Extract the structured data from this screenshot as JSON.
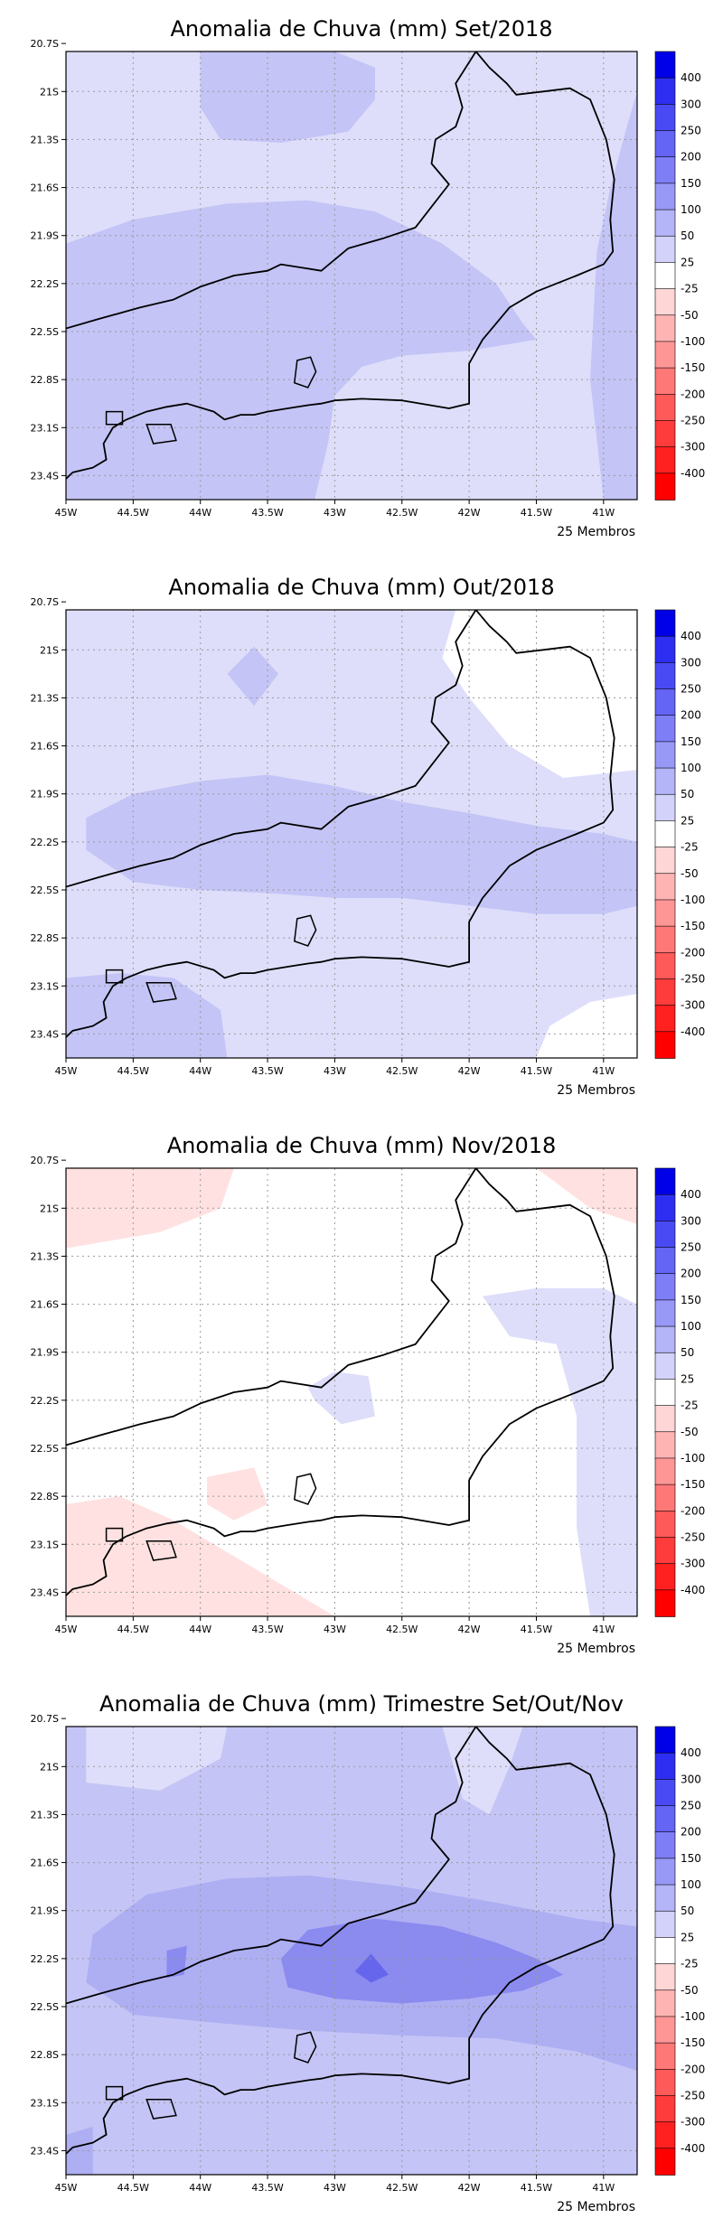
{
  "panels": [
    {
      "title": "Anomalia de Chuva (mm) Set/2018",
      "members_label": "25 Membros",
      "regions": [
        {
          "level": 25,
          "points": [
            [
              -45.0,
              -20.75
            ],
            [
              -40.75,
              -20.75
            ],
            [
              -40.75,
              -23.55
            ],
            [
              -45.0,
              -23.55
            ]
          ]
        },
        {
          "level": 50,
          "points": [
            [
              -45.0,
              -21.95
            ],
            [
              -44.5,
              -21.8
            ],
            [
              -43.8,
              -21.7
            ],
            [
              -43.2,
              -21.68
            ],
            [
              -42.7,
              -21.75
            ],
            [
              -42.2,
              -21.95
            ],
            [
              -41.8,
              -22.2
            ],
            [
              -41.6,
              -22.45
            ],
            [
              -41.5,
              -22.55
            ],
            [
              -42.0,
              -22.62
            ],
            [
              -42.5,
              -22.65
            ],
            [
              -42.8,
              -22.72
            ],
            [
              -43.0,
              -22.9
            ],
            [
              -43.05,
              -23.2
            ],
            [
              -43.15,
              -23.55
            ],
            [
              -45.0,
              -23.55
            ]
          ]
        },
        {
          "level": 50,
          "points": [
            [
              -44.0,
              -20.75
            ],
            [
              -43.0,
              -20.75
            ],
            [
              -42.7,
              -20.85
            ],
            [
              -42.7,
              -21.05
            ],
            [
              -42.9,
              -21.25
            ],
            [
              -43.4,
              -21.32
            ],
            [
              -43.85,
              -21.3
            ],
            [
              -44.0,
              -21.1
            ]
          ]
        },
        {
          "level": 50,
          "points": [
            [
              -40.82,
              -21.2
            ],
            [
              -40.75,
              -21.0
            ],
            [
              -40.75,
              -23.55
            ],
            [
              -41.0,
              -23.55
            ],
            [
              -41.1,
              -22.8
            ],
            [
              -41.05,
              -22.0
            ],
            [
              -40.95,
              -21.6
            ]
          ]
        }
      ]
    },
    {
      "title": "Anomalia de Chuva (mm) Out/2018",
      "members_label": "25 Membros",
      "regions": [
        {
          "level": 25,
          "points": [
            [
              -45.0,
              -20.75
            ],
            [
              -40.75,
              -20.75
            ],
            [
              -40.75,
              -23.55
            ],
            [
              -45.0,
              -23.55
            ]
          ]
        },
        {
          "level": 0,
          "points": [
            [
              -42.1,
              -20.75
            ],
            [
              -40.75,
              -20.75
            ],
            [
              -40.75,
              -21.75
            ],
            [
              -41.3,
              -21.8
            ],
            [
              -41.7,
              -21.6
            ],
            [
              -42.0,
              -21.3
            ],
            [
              -42.2,
              -21.05
            ]
          ]
        },
        {
          "level": 0,
          "points": [
            [
              -41.5,
              -23.55
            ],
            [
              -40.75,
              -23.55
            ],
            [
              -40.75,
              -23.15
            ],
            [
              -41.1,
              -23.2
            ],
            [
              -41.4,
              -23.35
            ]
          ]
        },
        {
          "level": 50,
          "points": [
            [
              -44.85,
              -22.25
            ],
            [
              -44.85,
              -22.05
            ],
            [
              -44.5,
              -21.9
            ],
            [
              -44.0,
              -21.82
            ],
            [
              -43.5,
              -21.78
            ],
            [
              -43.0,
              -21.85
            ],
            [
              -42.5,
              -21.95
            ],
            [
              -42.0,
              -22.02
            ],
            [
              -41.5,
              -22.1
            ],
            [
              -41.0,
              -22.15
            ],
            [
              -40.75,
              -22.2
            ],
            [
              -40.75,
              -22.6
            ],
            [
              -41.0,
              -22.65
            ],
            [
              -41.5,
              -22.65
            ],
            [
              -42.0,
              -22.6
            ],
            [
              -42.5,
              -22.55
            ],
            [
              -43.0,
              -22.55
            ],
            [
              -43.5,
              -22.52
            ],
            [
              -44.0,
              -22.5
            ],
            [
              -44.5,
              -22.45
            ]
          ]
        },
        {
          "level": 50,
          "points": [
            [
              -43.8,
              -21.15
            ],
            [
              -43.6,
              -20.98
            ],
            [
              -43.42,
              -21.15
            ],
            [
              -43.6,
              -21.35
            ]
          ]
        },
        {
          "level": 50,
          "points": [
            [
              -45.0,
              -23.05
            ],
            [
              -44.6,
              -23.02
            ],
            [
              -44.2,
              -23.05
            ],
            [
              -43.85,
              -23.25
            ],
            [
              -43.8,
              -23.55
            ],
            [
              -45.0,
              -23.55
            ]
          ]
        }
      ]
    },
    {
      "title": "Anomalia de Chuva (mm) Nov/2018",
      "members_label": "25 Membros",
      "regions": [
        {
          "level": 0,
          "points": [
            [
              -45.0,
              -20.75
            ],
            [
              -40.75,
              -20.75
            ],
            [
              -40.75,
              -23.55
            ],
            [
              -45.0,
              -23.55
            ]
          ]
        },
        {
          "level": -25,
          "points": [
            [
              -45.0,
              -20.75
            ],
            [
              -43.75,
              -20.75
            ],
            [
              -43.85,
              -21.0
            ],
            [
              -44.3,
              -21.15
            ],
            [
              -45.0,
              -21.25
            ]
          ]
        },
        {
          "level": -25,
          "points": [
            [
              -41.5,
              -20.75
            ],
            [
              -40.75,
              -20.75
            ],
            [
              -40.75,
              -21.1
            ],
            [
              -41.1,
              -21.0
            ]
          ]
        },
        {
          "level": -25,
          "points": [
            [
              -45.0,
              -22.85
            ],
            [
              -44.6,
              -22.8
            ],
            [
              -44.2,
              -22.95
            ],
            [
              -43.8,
              -23.15
            ],
            [
              -43.3,
              -23.4
            ],
            [
              -43.0,
              -23.55
            ],
            [
              -45.0,
              -23.55
            ]
          ]
        },
        {
          "level": -25,
          "points": [
            [
              -43.95,
              -22.68
            ],
            [
              -43.6,
              -22.62
            ],
            [
              -43.5,
              -22.85
            ],
            [
              -43.75,
              -22.95
            ],
            [
              -43.95,
              -22.85
            ]
          ]
        },
        {
          "level": 25,
          "points": [
            [
              -41.9,
              -21.55
            ],
            [
              -41.5,
              -21.5
            ],
            [
              -41.0,
              -21.5
            ],
            [
              -40.75,
              -21.6
            ],
            [
              -40.75,
              -23.55
            ],
            [
              -41.1,
              -23.55
            ],
            [
              -41.2,
              -23.0
            ],
            [
              -41.2,
              -22.3
            ],
            [
              -41.35,
              -21.85
            ],
            [
              -41.7,
              -21.8
            ]
          ]
        },
        {
          "level": 25,
          "points": [
            [
              -43.2,
              -22.12
            ],
            [
              -43.0,
              -22.02
            ],
            [
              -42.75,
              -22.05
            ],
            [
              -42.7,
              -22.3
            ],
            [
              -42.95,
              -22.35
            ],
            [
              -43.15,
              -22.2
            ]
          ]
        }
      ]
    },
    {
      "title": "Anomalia de Chuva (mm) Trimestre Set/Out/Nov",
      "members_label": "25 Membros",
      "regions": [
        {
          "level": 50,
          "points": [
            [
              -45.0,
              -20.75
            ],
            [
              -40.75,
              -20.75
            ],
            [
              -40.75,
              -23.55
            ],
            [
              -45.0,
              -23.55
            ]
          ]
        },
        {
          "level": 25,
          "points": [
            [
              -44.85,
              -20.75
            ],
            [
              -43.8,
              -20.75
            ],
            [
              -43.85,
              -20.95
            ],
            [
              -44.3,
              -21.15
            ],
            [
              -44.85,
              -21.1
            ]
          ]
        },
        {
          "level": 25,
          "points": [
            [
              -42.2,
              -20.75
            ],
            [
              -41.6,
              -20.75
            ],
            [
              -41.7,
              -21.0
            ],
            [
              -41.85,
              -21.3
            ],
            [
              -42.05,
              -21.2
            ]
          ]
        },
        {
          "level": 100,
          "points": [
            [
              -44.85,
              -22.35
            ],
            [
              -44.8,
              -22.05
            ],
            [
              -44.4,
              -21.8
            ],
            [
              -43.8,
              -21.7
            ],
            [
              -43.2,
              -21.68
            ],
            [
              -42.5,
              -21.75
            ],
            [
              -41.8,
              -21.85
            ],
            [
              -41.2,
              -21.95
            ],
            [
              -40.75,
              -22.0
            ],
            [
              -40.75,
              -22.9
            ],
            [
              -41.2,
              -22.78
            ],
            [
              -41.8,
              -22.7
            ],
            [
              -42.5,
              -22.68
            ],
            [
              -43.2,
              -22.65
            ],
            [
              -43.9,
              -22.6
            ],
            [
              -44.5,
              -22.55
            ]
          ]
        },
        {
          "level": 150,
          "points": [
            [
              -43.4,
              -22.2
            ],
            [
              -43.2,
              -22.02
            ],
            [
              -42.7,
              -21.95
            ],
            [
              -42.2,
              -22.0
            ],
            [
              -41.8,
              -22.1
            ],
            [
              -41.5,
              -22.2
            ],
            [
              -41.3,
              -22.3
            ],
            [
              -41.6,
              -22.4
            ],
            [
              -42.0,
              -22.45
            ],
            [
              -42.5,
              -22.48
            ],
            [
              -43.0,
              -22.45
            ],
            [
              -43.35,
              -22.38
            ]
          ]
        },
        {
          "level": 150,
          "points": [
            [
              -44.25,
              -22.15
            ],
            [
              -44.1,
              -22.12
            ],
            [
              -44.12,
              -22.3
            ],
            [
              -44.25,
              -22.32
            ]
          ]
        },
        {
          "level": 200,
          "points": [
            [
              -42.85,
              -22.28
            ],
            [
              -42.73,
              -22.17
            ],
            [
              -42.6,
              -22.3
            ],
            [
              -42.73,
              -22.35
            ]
          ]
        },
        {
          "level": 100,
          "points": [
            [
              -45.0,
              -23.3
            ],
            [
              -44.8,
              -23.25
            ],
            [
              -44.8,
              -23.55
            ],
            [
              -45.0,
              -23.55
            ]
          ]
        }
      ]
    }
  ],
  "axis": {
    "lat_ticks": [
      "20.7S",
      "21S",
      "21.3S",
      "21.6S",
      "21.9S",
      "22.2S",
      "22.5S",
      "22.8S",
      "23.1S",
      "23.4S"
    ],
    "lon_ticks": [
      "45W",
      "44.5W",
      "44W",
      "43.5W",
      "43W",
      "42.5W",
      "42W",
      "41.5W",
      "41W"
    ]
  },
  "colorbar": {
    "labels": [
      "400",
      "300",
      "250",
      "200",
      "150",
      "100",
      "50",
      "25",
      "-25",
      "-50",
      "-100",
      "-150",
      "-200",
      "-250",
      "-300",
      "-400"
    ],
    "colors": [
      "#0000e8",
      "#2e2ef2",
      "#4a4af4",
      "#6464f5",
      "#7e7ef6",
      "#9898f7",
      "#b4b4f8",
      "#d2d2fb",
      "#ffffff",
      "#ffd6d6",
      "#ffb4b4",
      "#ff9696",
      "#ff7878",
      "#ff5a5a",
      "#ff3c3c",
      "#ff2020",
      "#ff0000"
    ]
  },
  "level_colors": {
    "-25": "#ffe1e1",
    "0": "#ffffff",
    "25": "#dedefb",
    "50": "#c4c4f6",
    "100": "#aeaef3",
    "150": "#8a8aef",
    "200": "#6666ec"
  },
  "coastline": [
    [
      -45.0,
      -22.48
    ],
    [
      -44.75,
      -22.42
    ],
    [
      -44.45,
      -22.35
    ],
    [
      -44.2,
      -22.3
    ],
    [
      -44.0,
      -22.22
    ],
    [
      -43.75,
      -22.15
    ],
    [
      -43.5,
      -22.12
    ],
    [
      -43.4,
      -22.08
    ],
    [
      -43.25,
      -22.1
    ],
    [
      -43.1,
      -22.12
    ],
    [
      -43.0,
      -22.05
    ],
    [
      -42.9,
      -21.98
    ],
    [
      -42.65,
      -21.92
    ],
    [
      -42.4,
      -21.85
    ],
    [
      -42.28,
      -21.72
    ],
    [
      -42.15,
      -21.58
    ],
    [
      -42.28,
      -21.45
    ],
    [
      -42.25,
      -21.3
    ],
    [
      -42.1,
      -21.22
    ],
    [
      -42.05,
      -21.1
    ],
    [
      -42.1,
      -20.95
    ],
    [
      -41.95,
      -20.75
    ],
    [
      -41.85,
      -20.85
    ],
    [
      -41.72,
      -20.95
    ],
    [
      -41.65,
      -21.02
    ],
    [
      -41.45,
      -21.0
    ],
    [
      -41.25,
      -20.98
    ],
    [
      -41.1,
      -21.05
    ],
    [
      -40.98,
      -21.3
    ],
    [
      -40.92,
      -21.55
    ],
    [
      -40.95,
      -21.8
    ],
    [
      -40.93,
      -22.0
    ],
    [
      -41.0,
      -22.08
    ],
    [
      -41.2,
      -22.15
    ],
    [
      -41.5,
      -22.25
    ],
    [
      -41.7,
      -22.35
    ],
    [
      -41.9,
      -22.55
    ],
    [
      -42.0,
      -22.7
    ],
    [
      -42.0,
      -22.95
    ],
    [
      -42.15,
      -22.98
    ],
    [
      -42.5,
      -22.93
    ],
    [
      -42.8,
      -22.92
    ],
    [
      -43.0,
      -22.93
    ],
    [
      -43.1,
      -22.95
    ],
    [
      -43.2,
      -22.96
    ],
    [
      -43.35,
      -22.98
    ],
    [
      -43.5,
      -23.0
    ],
    [
      -43.6,
      -23.02
    ],
    [
      -43.7,
      -23.02
    ],
    [
      -43.82,
      -23.05
    ],
    [
      -43.9,
      -23.0
    ],
    [
      -44.1,
      -22.95
    ],
    [
      -44.25,
      -22.97
    ],
    [
      -44.4,
      -23.0
    ],
    [
      -44.55,
      -23.05
    ],
    [
      -44.65,
      -23.1
    ],
    [
      -44.72,
      -23.2
    ],
    [
      -44.7,
      -23.3
    ],
    [
      -44.8,
      -23.35
    ],
    [
      -44.95,
      -23.38
    ],
    [
      -45.0,
      -23.42
    ]
  ],
  "islands": [
    [
      [
        -43.28,
        -22.68
      ],
      [
        -43.18,
        -22.66
      ],
      [
        -43.14,
        -22.75
      ],
      [
        -43.2,
        -22.85
      ],
      [
        -43.3,
        -22.82
      ]
    ],
    [
      [
        -44.4,
        -23.08
      ],
      [
        -44.22,
        -23.08
      ],
      [
        -44.18,
        -23.18
      ],
      [
        -44.35,
        -23.2
      ]
    ],
    [
      [
        -44.7,
        -23.0
      ],
      [
        -44.58,
        -23.0
      ],
      [
        -44.58,
        -23.08
      ],
      [
        -44.7,
        -23.08
      ]
    ]
  ],
  "grid": {
    "lon": [
      -44.5,
      -44.0,
      -43.5,
      -43.0,
      -42.5,
      -42.0,
      -41.5,
      -41.0
    ],
    "lat": [
      -21.0,
      -21.3,
      -21.6,
      -21.9,
      -22.2,
      -22.5,
      -22.8,
      -23.1,
      -23.4
    ]
  }
}
